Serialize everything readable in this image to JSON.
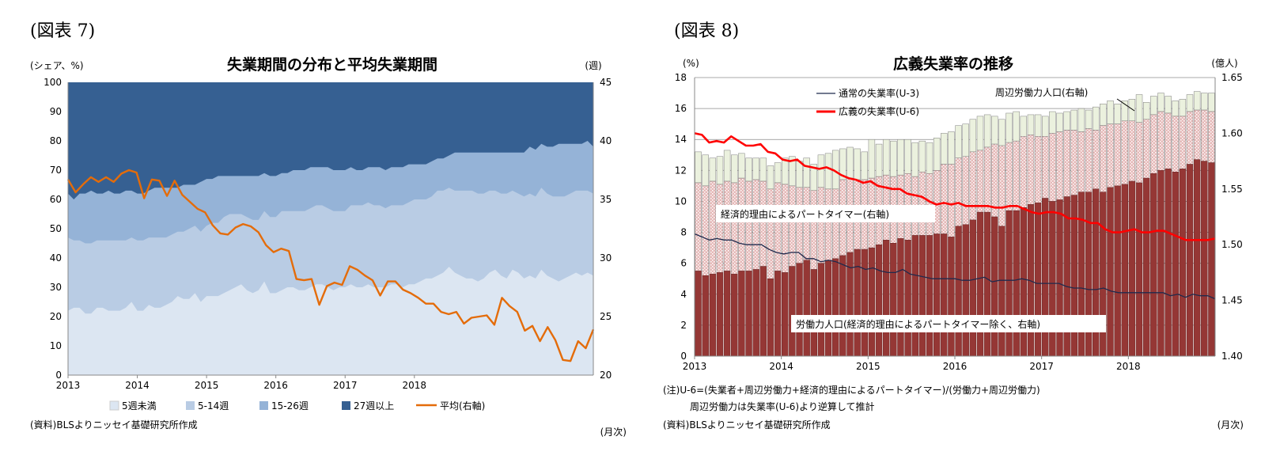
{
  "chart_data": [
    {
      "type": "area",
      "figure_label": "(図表 7)",
      "title": "失業期間の分布と平均失業期間",
      "ylabel": "(シェア、%)",
      "y2label": "(週)",
      "xlabel_note": "(月次)",
      "source": "(資料)BLSよりニッセイ基礎研究所作成",
      "ylim": [
        0,
        100
      ],
      "y2lim": [
        20,
        45
      ],
      "yticks": [
        "0",
        "10",
        "20",
        "30",
        "40",
        "50",
        "60",
        "70",
        "80",
        "90",
        "100"
      ],
      "y2ticks": [
        "20",
        "25",
        "30",
        "35",
        "40",
        "45"
      ],
      "xticks": [
        "2013",
        "2014",
        "2015",
        "2016",
        "2017",
        "2018"
      ],
      "x_start": "2013-01",
      "x_end": "2018-09",
      "colors": {
        "s1": "#dce6f2",
        "s2": "#b9cce4",
        "s3": "#95b3d7",
        "s4": "#366092",
        "avg": "#e46c0a"
      },
      "series": [
        {
          "name": "5週未満",
          "type": "stacked-area",
          "values": [
            22,
            23,
            23,
            21,
            21,
            23,
            23,
            22,
            22,
            22,
            23,
            25,
            22,
            22,
            24,
            23,
            23,
            24,
            25,
            27,
            26,
            26,
            28,
            25,
            27,
            27,
            27,
            28,
            29,
            30,
            31,
            29,
            28,
            29,
            32,
            28,
            28,
            29,
            30,
            30,
            29,
            29,
            30,
            31,
            31,
            30,
            29,
            30,
            30,
            31,
            30,
            30,
            31,
            30,
            30,
            30,
            31,
            31,
            30,
            31,
            31,
            32,
            33,
            33,
            34,
            35,
            37,
            35,
            34,
            33,
            33,
            32,
            33,
            35,
            36,
            34,
            33,
            36,
            35,
            33,
            34,
            33,
            36,
            34,
            33,
            32,
            33,
            34,
            35,
            34,
            35,
            34
          ]
        },
        {
          "name": "5-14週",
          "type": "stacked-area",
          "values": [
            25,
            23,
            23,
            24,
            24,
            23,
            23,
            24,
            24,
            24,
            23,
            22,
            24,
            24,
            23,
            24,
            24,
            23,
            23,
            22,
            23,
            24,
            23,
            24,
            24,
            25,
            25,
            26,
            26,
            25,
            24,
            25,
            25,
            24,
            24,
            26,
            26,
            27,
            26,
            26,
            27,
            27,
            27,
            27,
            27,
            27,
            27,
            26,
            26,
            27,
            28,
            28,
            28,
            28,
            28,
            27,
            27,
            27,
            28,
            28,
            29,
            28,
            27,
            28,
            29,
            28,
            27,
            28,
            29,
            30,
            30,
            30,
            29,
            28,
            27,
            28,
            29,
            27,
            27,
            28,
            28,
            28,
            28,
            28,
            28,
            29,
            28,
            28,
            28,
            29,
            28,
            28
          ]
        },
        {
          "name": "15-26週",
          "type": "stacked-area",
          "values": [
            15,
            14,
            16,
            17,
            18,
            16,
            16,
            17,
            16,
            16,
            17,
            16,
            16,
            16,
            16,
            17,
            17,
            17,
            16,
            15,
            16,
            15,
            14,
            17,
            16,
            15,
            16,
            14,
            13,
            13,
            13,
            14,
            15,
            15,
            13,
            14,
            14,
            13,
            13,
            14,
            14,
            14,
            14,
            13,
            13,
            14,
            14,
            14,
            14,
            13,
            12,
            12,
            12,
            13,
            13,
            13,
            13,
            13,
            13,
            13,
            12,
            12,
            12,
            12,
            11,
            11,
            11,
            13,
            13,
            13,
            13,
            14,
            14,
            13,
            13,
            14,
            14,
            13,
            14,
            15,
            16,
            16,
            15,
            16,
            17,
            18,
            18,
            17,
            16,
            16,
            17,
            16
          ]
        },
        {
          "name": "27週以上",
          "type": "stacked-area",
          "values": [
            38,
            40,
            38,
            38,
            37,
            38,
            38,
            37,
            38,
            38,
            37,
            37,
            38,
            38,
            37,
            36,
            36,
            36,
            36,
            36,
            35,
            35,
            35,
            34,
            33,
            33,
            32,
            32,
            32,
            32,
            32,
            32,
            32,
            32,
            31,
            32,
            32,
            31,
            31,
            30,
            30,
            30,
            29,
            29,
            29,
            29,
            30,
            30,
            30,
            29,
            30,
            30,
            29,
            29,
            29,
            30,
            29,
            29,
            29,
            28,
            28,
            28,
            28,
            27,
            26,
            26,
            25,
            24,
            24,
            24,
            24,
            24,
            24,
            24,
            24,
            24,
            24,
            24,
            24,
            24,
            22,
            23,
            21,
            22,
            22,
            21,
            21,
            21,
            21,
            21,
            20,
            22
          ]
        },
        {
          "name": "平均(右軸)",
          "type": "line",
          "axis": "right",
          "values": [
            36.7,
            35.6,
            36.3,
            36.9,
            36.5,
            36.9,
            36.5,
            37.2,
            37.5,
            37.3,
            35.1,
            36.7,
            36.6,
            35.3,
            36.6,
            35.4,
            34.8,
            34.2,
            33.9,
            32.8,
            32.1,
            32.0,
            32.6,
            32.9,
            32.7,
            32.2,
            31.1,
            30.5,
            30.8,
            30.6,
            28.2,
            28.1,
            28.2,
            26.0,
            27.6,
            27.9,
            27.7,
            29.3,
            29.0,
            28.5,
            28.1,
            26.8,
            28.0,
            28.0,
            27.3,
            27.0,
            26.6,
            26.1,
            26.1,
            25.4,
            25.2,
            25.4,
            24.4,
            24.9,
            25.0,
            25.1,
            24.3,
            26.6,
            25.9,
            25.4,
            23.8,
            24.2,
            22.9,
            24.1,
            23.0,
            21.3,
            21.2,
            22.9,
            22.3,
            23.9
          ]
        }
      ]
    },
    {
      "type": "bar",
      "figure_label": "(図表 8)",
      "title": "広義失業率の推移",
      "ylabel": "(%)",
      "y2label": "(億人)",
      "xlabel_note": "(月次)",
      "note_line1": "(注)U-6=(失業者+周辺労働力+経済的理由によるパートタイマー)/(労働力+周辺労働力)",
      "note_line2": "周辺労働力は失業率(U-6)より逆算して推計",
      "source": "(資料)BLSよりニッセイ基礎研究所作成",
      "ylim": [
        0,
        18
      ],
      "y2lim": [
        1.4,
        1.65
      ],
      "yticks": [
        "0",
        "2",
        "4",
        "6",
        "8",
        "10",
        "12",
        "14",
        "16",
        "18"
      ],
      "y2ticks": [
        "1.40",
        "1.45",
        "1.50",
        "1.55",
        "1.60",
        "1.65"
      ],
      "xticks": [
        "2013",
        "2014",
        "2015",
        "2016",
        "2017",
        "2018"
      ],
      "x_start": "2013-01",
      "x_end": "2018-09",
      "colors": {
        "labor": "#953735",
        "part": "#e6b9b8",
        "marginal": "#ebf1de",
        "u3": "#1f2a4d",
        "u6": "#ff0000"
      },
      "labels": {
        "labor": "労働力人口(経済的理由によるパートタイマー除く、右軸)",
        "part": "経済的理由によるパートタイマー(右軸)",
        "marginal": "周辺労働力人口(右軸)"
      },
      "stack_tops": {
        "labor": [
          5.5,
          5.2,
          5.3,
          5.4,
          5.5,
          5.3,
          5.5,
          5.5,
          5.6,
          5.8,
          5.0,
          5.5,
          5.4,
          5.8,
          6.0,
          6.2,
          5.6,
          6.0,
          6.2,
          6.3,
          6.5,
          6.7,
          6.9,
          6.9,
          7.0,
          7.2,
          7.5,
          7.3,
          7.6,
          7.5,
          7.8,
          7.8,
          7.8,
          7.9,
          7.9,
          7.7,
          8.4,
          8.5,
          8.8,
          9.3,
          9.3,
          9.0,
          8.4,
          9.4,
          9.4,
          9.6,
          9.8,
          9.9,
          10.2,
          10.0,
          10.1,
          10.3,
          10.4,
          10.6,
          10.6,
          10.8,
          10.6,
          10.9,
          11.0,
          11.1,
          11.3,
          11.2,
          11.5,
          11.8,
          12.0,
          12.1,
          11.9,
          12.1,
          12.4,
          12.7,
          12.6,
          12.5
        ],
        "part": [
          11.2,
          11.0,
          11.3,
          11.1,
          11.3,
          11.2,
          11.5,
          11.3,
          11.4,
          11.3,
          10.8,
          11.2,
          11.1,
          11.0,
          10.9,
          10.9,
          10.7,
          10.9,
          10.8,
          10.8,
          11.4,
          11.5,
          11.4,
          11.4,
          11.5,
          11.6,
          11.7,
          11.6,
          11.7,
          11.8,
          11.6,
          11.9,
          11.8,
          12.0,
          12.4,
          12.4,
          12.8,
          12.9,
          13.2,
          13.3,
          13.5,
          13.7,
          13.6,
          13.8,
          13.9,
          14.2,
          14.3,
          14.2,
          14.2,
          14.4,
          14.5,
          14.6,
          14.6,
          14.5,
          14.7,
          14.6,
          14.9,
          15.0,
          15.0,
          15.2,
          15.2,
          15.1,
          15.3,
          15.6,
          15.8,
          15.7,
          15.5,
          15.5,
          15.8,
          15.9,
          15.9,
          15.8
        ],
        "total": [
          13.2,
          13.0,
          12.8,
          12.9,
          13.3,
          13.0,
          13.1,
          12.8,
          12.8,
          12.8,
          12.3,
          12.5,
          12.8,
          12.9,
          12.6,
          12.8,
          12.4,
          13.0,
          13.1,
          13.3,
          13.4,
          13.5,
          13.4,
          13.2,
          14.0,
          13.7,
          14.0,
          13.9,
          14.0,
          14.0,
          13.8,
          13.9,
          13.8,
          14.1,
          14.4,
          14.5,
          14.9,
          15.0,
          15.3,
          15.5,
          15.6,
          15.5,
          15.3,
          15.7,
          15.8,
          15.5,
          15.6,
          15.6,
          15.5,
          15.8,
          15.7,
          15.8,
          15.9,
          16.0,
          15.9,
          16.1,
          16.3,
          16.5,
          16.3,
          16.5,
          16.6,
          16.9,
          16.4,
          16.8,
          17.0,
          16.8,
          16.5,
          16.6,
          16.9,
          17.1,
          17.0,
          17.0
        ]
      },
      "series": [
        {
          "name": "通常の失業率(U-3)",
          "type": "line",
          "values": [
            7.9,
            7.7,
            7.5,
            7.6,
            7.5,
            7.5,
            7.3,
            7.2,
            7.2,
            7.2,
            6.9,
            6.7,
            6.6,
            6.7,
            6.7,
            6.3,
            6.3,
            6.1,
            6.2,
            6.1,
            5.9,
            5.7,
            5.8,
            5.6,
            5.7,
            5.5,
            5.4,
            5.4,
            5.6,
            5.3,
            5.2,
            5.1,
            5.0,
            5.0,
            5.0,
            5.0,
            4.9,
            4.9,
            5.0,
            5.1,
            4.8,
            4.9,
            4.9,
            4.9,
            5.0,
            4.9,
            4.7,
            4.7,
            4.7,
            4.7,
            4.5,
            4.4,
            4.4,
            4.3,
            4.3,
            4.4,
            4.2,
            4.1,
            4.1,
            4.1,
            4.1,
            4.1,
            4.1,
            4.1,
            3.9,
            4.0,
            3.8,
            4.0,
            3.9,
            3.9,
            3.7
          ]
        },
        {
          "name": "広義の失業率(U-6)",
          "type": "line",
          "values": [
            14.4,
            14.3,
            13.8,
            13.9,
            13.8,
            14.2,
            13.9,
            13.6,
            13.6,
            13.7,
            13.2,
            13.1,
            12.7,
            12.6,
            12.7,
            12.3,
            12.2,
            12.1,
            12.2,
            12.0,
            11.7,
            11.5,
            11.4,
            11.2,
            11.3,
            11.0,
            10.9,
            10.8,
            10.8,
            10.5,
            10.4,
            10.3,
            10.0,
            9.8,
            9.9,
            9.8,
            9.9,
            9.7,
            9.7,
            9.7,
            9.7,
            9.6,
            9.6,
            9.7,
            9.7,
            9.5,
            9.3,
            9.2,
            9.3,
            9.3,
            9.2,
            8.9,
            8.9,
            8.8,
            8.6,
            8.6,
            8.2,
            8.0,
            8.0,
            8.1,
            8.2,
            8.0,
            8.0,
            8.1,
            8.1,
            7.9,
            7.7,
            7.5,
            7.5,
            7.5,
            7.5,
            7.6
          ]
        }
      ]
    }
  ]
}
